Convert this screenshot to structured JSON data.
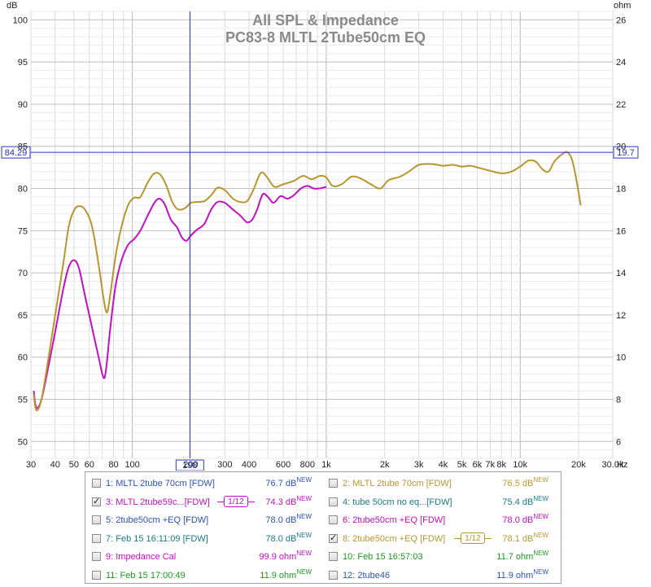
{
  "chart_data": {
    "type": "line",
    "title": "All SPL & Impedance",
    "subtitle": "PC83-8 MLTL 2Tube50cm EQ",
    "ylabel_left": "dB",
    "ylabel_right": "ohm",
    "xlabel_unit": "Hz",
    "x_scale": "log",
    "xlim": [
      30,
      30000
    ],
    "ylim": [
      48,
      101
    ],
    "y2lim": [
      5.2,
      26.4
    ],
    "grid": true,
    "x_ticks": [
      {
        "value": 30,
        "label": "30"
      },
      {
        "value": 40,
        "label": "40"
      },
      {
        "value": 50,
        "label": "50"
      },
      {
        "value": 60,
        "label": "60"
      },
      {
        "value": 80,
        "label": "80"
      },
      {
        "value": 100,
        "label": "100"
      },
      {
        "value": 200,
        "label": "200"
      },
      {
        "value": 300,
        "label": "300"
      },
      {
        "value": 400,
        "label": "400"
      },
      {
        "value": 600,
        "label": "600"
      },
      {
        "value": 800,
        "label": "800"
      },
      {
        "value": 1000,
        "label": "1k"
      },
      {
        "value": 2000,
        "label": "2k"
      },
      {
        "value": 3000,
        "label": "3k"
      },
      {
        "value": 4000,
        "label": "4k"
      },
      {
        "value": 5000,
        "label": "5k"
      },
      {
        "value": 6000,
        "label": "6k"
      },
      {
        "value": 7000,
        "label": "7k"
      },
      {
        "value": 8000,
        "label": "8k"
      },
      {
        "value": 10000,
        "label": "10k"
      },
      {
        "value": 20000,
        "label": "20k"
      },
      {
        "value": 30000,
        "label": "30.0k"
      }
    ],
    "y_ticks": [
      100,
      95,
      90,
      85,
      80,
      75,
      70,
      65,
      60,
      55,
      50
    ],
    "y2_ticks": [
      26,
      24,
      22,
      20,
      18,
      16,
      14,
      12,
      10,
      8,
      6
    ],
    "cursor": {
      "x": 198,
      "x_label": "198",
      "y": 84.29,
      "y_label": "84.29",
      "y2_label": "19.7"
    },
    "series": [
      {
        "name": "3: MLTL 2tube59c...[FDW]",
        "color": "#c010c0",
        "points": [
          [
            31,
            56
          ],
          [
            32,
            54
          ],
          [
            34,
            55
          ],
          [
            37,
            59
          ],
          [
            40,
            63
          ],
          [
            44,
            68
          ],
          [
            47,
            70.7
          ],
          [
            50,
            71.5
          ],
          [
            53,
            70.6
          ],
          [
            57,
            67.3
          ],
          [
            62,
            63.5
          ],
          [
            67,
            60
          ],
          [
            70,
            58
          ],
          [
            72,
            57.6
          ],
          [
            74,
            59.5
          ],
          [
            77,
            63.5
          ],
          [
            82,
            68.5
          ],
          [
            88,
            71.5
          ],
          [
            95,
            73.3
          ],
          [
            102,
            74
          ],
          [
            110,
            75
          ],
          [
            120,
            76.8
          ],
          [
            130,
            78.3
          ],
          [
            138,
            78.8
          ],
          [
            147,
            78.1
          ],
          [
            158,
            76.3
          ],
          [
            170,
            75.4
          ],
          [
            180,
            74.2
          ],
          [
            190,
            73.8
          ],
          [
            200,
            74.4
          ],
          [
            215,
            75.1
          ],
          [
            235,
            75.8
          ],
          [
            255,
            77.5
          ],
          [
            275,
            78.4
          ],
          [
            300,
            78.3
          ],
          [
            330,
            77.5
          ],
          [
            360,
            76.8
          ],
          [
            390,
            76
          ],
          [
            415,
            76.3
          ],
          [
            440,
            77.5
          ],
          [
            470,
            79.3
          ],
          [
            500,
            79
          ],
          [
            535,
            78.3
          ],
          [
            580,
            79.1
          ],
          [
            630,
            78.8
          ],
          [
            680,
            79.2
          ],
          [
            740,
            80
          ],
          [
            800,
            80.3
          ],
          [
            860,
            80
          ],
          [
            920,
            80
          ],
          [
            1000,
            80.2
          ]
        ]
      },
      {
        "name": "8: 2tube50cm +EQ [FDW]",
        "color": "#b8962e",
        "points": [
          [
            31,
            55.6
          ],
          [
            32,
            53.7
          ],
          [
            34,
            55
          ],
          [
            37,
            60
          ],
          [
            40,
            65
          ],
          [
            44,
            71
          ],
          [
            47,
            75.5
          ],
          [
            50,
            77.4
          ],
          [
            53,
            77.9
          ],
          [
            57,
            77.5
          ],
          [
            62,
            75.5
          ],
          [
            67,
            71
          ],
          [
            71,
            67
          ],
          [
            74,
            65.3
          ],
          [
            77,
            67.5
          ],
          [
            82,
            72
          ],
          [
            88,
            75.5
          ],
          [
            95,
            78
          ],
          [
            102,
            78.9
          ],
          [
            110,
            79
          ],
          [
            120,
            80.7
          ],
          [
            130,
            81.8
          ],
          [
            140,
            81.6
          ],
          [
            150,
            80.3
          ],
          [
            160,
            78.5
          ],
          [
            170,
            77.6
          ],
          [
            180,
            77.5
          ],
          [
            190,
            77.8
          ],
          [
            200,
            78.3
          ],
          [
            215,
            78.4
          ],
          [
            235,
            78.5
          ],
          [
            255,
            79.2
          ],
          [
            275,
            80.1
          ],
          [
            300,
            79.8
          ],
          [
            330,
            78.8
          ],
          [
            360,
            78.4
          ],
          [
            390,
            78.5
          ],
          [
            420,
            79.8
          ],
          [
            450,
            81.5
          ],
          [
            470,
            81.9
          ],
          [
            500,
            81.2
          ],
          [
            540,
            80.2
          ],
          [
            600,
            80.5
          ],
          [
            680,
            80.9
          ],
          [
            760,
            81.5
          ],
          [
            840,
            81.1
          ],
          [
            930,
            81.5
          ],
          [
            1000,
            81.3
          ],
          [
            1080,
            80.3
          ],
          [
            1200,
            80.5
          ],
          [
            1350,
            81.4
          ],
          [
            1500,
            81.2
          ],
          [
            1700,
            80.5
          ],
          [
            1900,
            80
          ],
          [
            2100,
            81
          ],
          [
            2400,
            81.4
          ],
          [
            2700,
            82.1
          ],
          [
            3000,
            82.8
          ],
          [
            3500,
            82.9
          ],
          [
            4000,
            82.7
          ],
          [
            4500,
            82.8
          ],
          [
            5000,
            82.6
          ],
          [
            5500,
            82.7
          ],
          [
            6000,
            82.5
          ],
          [
            7000,
            82.1
          ],
          [
            8000,
            81.8
          ],
          [
            9000,
            82
          ],
          [
            10000,
            82.6
          ],
          [
            11000,
            83.3
          ],
          [
            12000,
            83.2
          ],
          [
            13000,
            82.3
          ],
          [
            14000,
            82
          ],
          [
            15000,
            83.2
          ],
          [
            16500,
            84.1
          ],
          [
            17500,
            84.3
          ],
          [
            18500,
            83.4
          ],
          [
            19500,
            81
          ],
          [
            20500,
            78
          ]
        ]
      }
    ]
  },
  "legend": {
    "items": [
      {
        "label": "1: MLTL 2tube 70cm [FDW]",
        "value": "76.7 dB",
        "sup": "NEW",
        "color": "#2a52be",
        "checked": false,
        "col": 0,
        "row": 0
      },
      {
        "label": "2: MLTL 2tube 70cm [FDW]",
        "value": "76.5 dB",
        "sup": "NEW",
        "color": "#b8962e",
        "checked": false,
        "col": 1,
        "row": 0
      },
      {
        "label": "3: MLTL 2tube59c...[FDW]",
        "value": "74.3 dB",
        "sup": "NEW",
        "color": "#c010c0",
        "checked": true,
        "col": 0,
        "row": 1,
        "smoothing": "1/12"
      },
      {
        "label": "4: tube 50cm no eq...[FDW]",
        "value": "75.4 dB",
        "sup": "NEW",
        "color": "#1a7a8a",
        "checked": false,
        "col": 1,
        "row": 1
      },
      {
        "label": "5: 2tube50cm +EQ [FDW]",
        "value": "78.0 dB",
        "sup": "NEW",
        "color": "#2a52be",
        "checked": false,
        "col": 0,
        "row": 2
      },
      {
        "label": "6: 2tube50cm +EQ [FDW]",
        "value": "78.0 dB",
        "sup": "NEW",
        "color": "#c010c0",
        "checked": false,
        "col": 1,
        "row": 2
      },
      {
        "label": "7: Feb 15 16:11:09 [FDW]",
        "value": "78.0 dB",
        "sup": "NEW",
        "color": "#1a7a8a",
        "checked": false,
        "col": 0,
        "row": 3
      },
      {
        "label": "8: 2tube50cm +EQ [FDW]",
        "value": "78.1 dB",
        "sup": "NEW",
        "color": "#b8962e",
        "checked": true,
        "col": 1,
        "row": 3,
        "smoothing": "1/12"
      },
      {
        "label": "9: Impedance Cal",
        "value": "99.9 ohm",
        "sup": "NEW",
        "color": "#c010c0",
        "checked": false,
        "col": 0,
        "row": 4
      },
      {
        "label": "10: Feb 15 16:57:03",
        "value": "11.7 ohm",
        "sup": "NEW",
        "color": "#1a9a1a",
        "checked": false,
        "col": 1,
        "row": 4
      },
      {
        "label": "11: Feb 15 17:00:49",
        "value": "11.9 ohm",
        "sup": "NEW",
        "color": "#1a9a1a",
        "checked": false,
        "col": 0,
        "row": 5
      },
      {
        "label": "12: 2tube46",
        "value": "11.9 ohm",
        "sup": "NEW",
        "color": "#2a52be",
        "checked": false,
        "col": 1,
        "row": 5
      }
    ]
  }
}
